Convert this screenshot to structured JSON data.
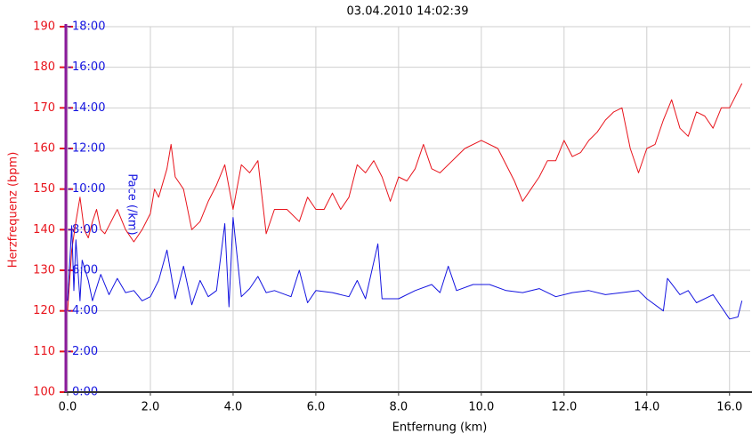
{
  "chart_data": {
    "type": "line",
    "title": "03.04.2010 14:02:39",
    "xlabel": "Entfernung (km)",
    "ylabel": "Herzfrequenz (bpm)",
    "y2label": "Pace (/km)",
    "xlim": [
      0,
      16.5
    ],
    "xticks": [
      {
        "value": 0,
        "label": "0.0"
      },
      {
        "value": 2,
        "label": "2.0"
      },
      {
        "value": 4,
        "label": "4.0"
      },
      {
        "value": 6,
        "label": "6.0"
      },
      {
        "value": 8,
        "label": "8.0"
      },
      {
        "value": 10,
        "label": "10.0"
      },
      {
        "value": 12,
        "label": "12.0"
      },
      {
        "value": 14,
        "label": "14.0"
      },
      {
        "value": 16,
        "label": "16.0"
      }
    ],
    "ylim": [
      100,
      190
    ],
    "yticks": [
      100,
      110,
      120,
      130,
      140,
      150,
      160,
      170,
      180,
      190
    ],
    "y2lim": [
      0,
      18
    ],
    "y2ticks": [
      {
        "value": 0,
        "label": "0:00"
      },
      {
        "value": 2,
        "label": "2:00"
      },
      {
        "value": 4,
        "label": "4:00"
      },
      {
        "value": 6,
        "label": "6:00"
      },
      {
        "value": 8,
        "label": "8:00"
      },
      {
        "value": 10,
        "label": "10:00"
      },
      {
        "value": 12,
        "label": "12:00"
      },
      {
        "value": 14,
        "label": "14:00"
      },
      {
        "value": 16,
        "label": "16:00"
      },
      {
        "value": 18,
        "label": "18:00"
      }
    ],
    "grid": true,
    "series": [
      {
        "name": "Herzfrequenz",
        "color": "#e8141c",
        "x": [
          0,
          0.1,
          0.2,
          0.3,
          0.4,
          0.5,
          0.6,
          0.7,
          0.8,
          0.9,
          1.0,
          1.2,
          1.4,
          1.6,
          1.8,
          2.0,
          2.1,
          2.2,
          2.4,
          2.5,
          2.6,
          2.8,
          3.0,
          3.2,
          3.4,
          3.6,
          3.8,
          4.0,
          4.2,
          4.4,
          4.6,
          4.8,
          5.0,
          5.3,
          5.6,
          5.8,
          6.0,
          6.2,
          6.4,
          6.6,
          6.8,
          7.0,
          7.2,
          7.4,
          7.6,
          7.8,
          8.0,
          8.2,
          8.4,
          8.6,
          8.8,
          9.0,
          9.4,
          9.6,
          10.0,
          10.4,
          10.8,
          11.0,
          11.2,
          11.4,
          11.6,
          11.8,
          12.0,
          12.2,
          12.4,
          12.6,
          12.8,
          13.0,
          13.2,
          13.4,
          13.6,
          13.8,
          14.0,
          14.2,
          14.4,
          14.6,
          14.8,
          15.0,
          15.2,
          15.4,
          15.6,
          15.8,
          16.0,
          16.3
        ],
        "values": [
          120,
          135,
          142,
          148,
          140,
          138,
          142,
          145,
          140,
          139,
          141,
          145,
          140,
          137,
          140,
          144,
          150,
          148,
          155,
          161,
          153,
          150,
          140,
          142,
          147,
          151,
          156,
          145,
          156,
          154,
          157,
          139,
          145,
          145,
          142,
          148,
          145,
          145,
          149,
          145,
          148,
          156,
          154,
          157,
          153,
          147,
          153,
          152,
          155,
          161,
          155,
          154,
          158,
          160,
          162,
          160,
          152,
          147,
          150,
          153,
          157,
          157,
          162,
          158,
          159,
          162,
          164,
          167,
          169,
          170,
          160,
          154,
          160,
          161,
          167,
          172,
          165,
          163,
          169,
          168,
          165,
          170,
          170,
          176
        ]
      },
      {
        "name": "Pace",
        "color": "#1414e0",
        "axis": "y2",
        "x": [
          0,
          0.1,
          0.15,
          0.2,
          0.3,
          0.35,
          0.5,
          0.6,
          0.8,
          1.0,
          1.2,
          1.4,
          1.6,
          1.8,
          2.0,
          2.2,
          2.4,
          2.6,
          2.8,
          3.0,
          3.2,
          3.4,
          3.6,
          3.8,
          3.9,
          4.0,
          4.2,
          4.4,
          4.6,
          4.8,
          5.0,
          5.4,
          5.6,
          5.8,
          6.0,
          6.4,
          6.8,
          7.0,
          7.2,
          7.5,
          7.6,
          8.0,
          8.4,
          8.8,
          9.0,
          9.2,
          9.4,
          9.8,
          10.2,
          10.6,
          11.0,
          11.4,
          11.8,
          12.2,
          12.6,
          13.0,
          13.4,
          13.8,
          14.0,
          14.4,
          14.5,
          14.8,
          15.0,
          15.2,
          15.6,
          16.0,
          16.2,
          16.3
        ],
        "values": [
          4.5,
          8.2,
          5,
          7.5,
          4.5,
          6.5,
          5.5,
          4.5,
          5.8,
          4.8,
          5.6,
          4.9,
          5.0,
          4.5,
          4.7,
          5.5,
          7.0,
          4.6,
          6.2,
          4.3,
          5.5,
          4.7,
          5.0,
          8.3,
          4.2,
          8.6,
          4.7,
          5.1,
          5.7,
          4.9,
          5.0,
          4.7,
          6.0,
          4.4,
          5.0,
          4.9,
          4.7,
          5.5,
          4.6,
          7.3,
          4.6,
          4.6,
          5.0,
          5.3,
          4.9,
          6.2,
          5.0,
          5.3,
          5.3,
          5.0,
          4.9,
          5.1,
          4.7,
          4.9,
          5.0,
          4.8,
          4.9,
          5.0,
          4.6,
          4.0,
          5.6,
          4.8,
          5.0,
          4.4,
          4.8,
          3.6,
          3.7,
          4.5
        ]
      }
    ]
  }
}
